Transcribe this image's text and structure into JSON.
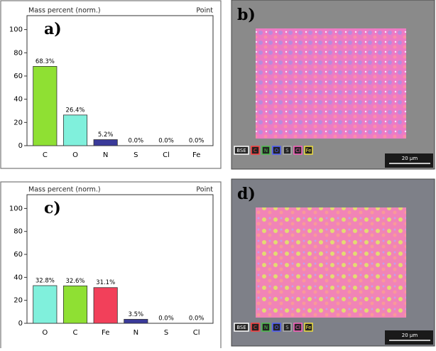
{
  "chart_data": [
    {
      "type": "bar",
      "title": "Mass percent (norm.)",
      "corner_label": "Point",
      "panel_label": "a)",
      "categories": [
        "C",
        "O",
        "N",
        "S",
        "Cl",
        "Fe"
      ],
      "values": [
        68.3,
        26.4,
        5.2,
        0,
        0,
        0
      ],
      "value_labels": [
        "68.3%",
        "26.4%",
        "5.2%",
        "0.0%",
        "0.0%",
        "0.0%"
      ],
      "colors": [
        "#8fe033",
        "#80f0dc",
        "#3a3a9a",
        "#3a3a9a",
        "#3a3a9a",
        "#3a3a9a"
      ],
      "ylim": [
        0,
        112
      ],
      "yticks": [
        0,
        20,
        40,
        60,
        80,
        100
      ]
    },
    {
      "type": "bar",
      "title": "Mass percent (norm.)",
      "corner_label": "Point",
      "panel_label": "c)",
      "categories": [
        "O",
        "C",
        "Fe",
        "N",
        "S",
        "Cl"
      ],
      "values": [
        32.8,
        32.6,
        31.1,
        3.5,
        0,
        0
      ],
      "value_labels": [
        "32.8%",
        "32.6%",
        "31.1%",
        "3.5%",
        "0.0%",
        "0.0%"
      ],
      "colors": [
        "#80f0dc",
        "#8fe033",
        "#f2405a",
        "#3a3a9a",
        "#3a3a9a",
        "#3a3a9a"
      ],
      "ylim": [
        0,
        112
      ],
      "yticks": [
        0,
        20,
        40,
        60,
        80,
        100
      ]
    }
  ],
  "images": [
    {
      "panel_label": "b)",
      "legend": [
        "BSE",
        "C",
        "N",
        "O",
        "S",
        "Cl",
        "Fe"
      ],
      "scale_bar": "20 µm"
    },
    {
      "panel_label": "d)",
      "legend": [
        "BSE",
        "C",
        "N",
        "O",
        "S",
        "Cl",
        "Fe"
      ],
      "scale_bar": "20 µm"
    }
  ]
}
